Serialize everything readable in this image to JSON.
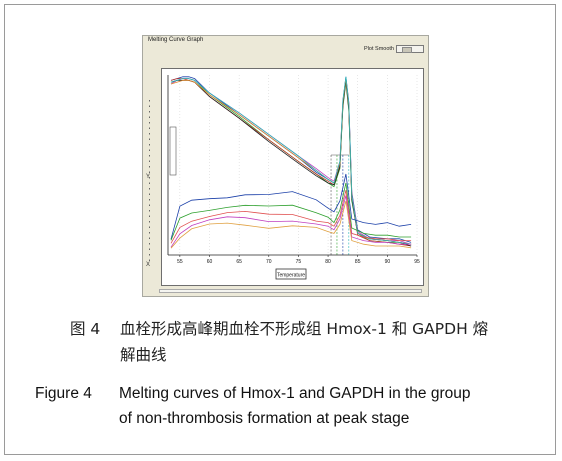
{
  "window": {
    "title": "Melting Curve Graph",
    "smooth_label": "Plot Smooth",
    "y_side_label": "Y",
    "x_side_label": "X"
  },
  "chart_data": {
    "type": "line",
    "xlabel": "Temperature",
    "ylabel": "",
    "xlim": [
      53,
      95
    ],
    "x_ticks": [
      55,
      60,
      65,
      70,
      75,
      80,
      85,
      90,
      95
    ],
    "y_tick_labels": [],
    "series": [
      {
        "color": "#1a3fa8",
        "x": [
          53.5,
          54.5,
          55.5,
          56.5,
          57.5,
          60,
          65,
          70,
          75,
          78,
          80,
          81,
          82,
          82.5,
          83,
          83.5,
          84,
          85,
          87,
          90,
          92,
          94
        ],
        "y": [
          0.97,
          0.98,
          0.99,
          0.99,
          0.98,
          0.9,
          0.78,
          0.66,
          0.54,
          0.46,
          0.42,
          0.4,
          0.5,
          0.85,
          0.99,
          0.85,
          0.35,
          0.14,
          0.1,
          0.09,
          0.09,
          0.07
        ]
      },
      {
        "color": "#2ea02e",
        "x": [
          53.5,
          54.5,
          55.5,
          56.5,
          57.5,
          60,
          65,
          70,
          75,
          78,
          80,
          81,
          82,
          82.5,
          83,
          83.5,
          84,
          85,
          87,
          90,
          92,
          94
        ],
        "y": [
          0.96,
          0.97,
          0.98,
          0.98,
          0.97,
          0.89,
          0.77,
          0.64,
          0.52,
          0.45,
          0.4,
          0.38,
          0.48,
          0.82,
          0.96,
          0.8,
          0.3,
          0.12,
          0.08,
          0.07,
          0.07,
          0.06
        ]
      },
      {
        "color": "#c0392b",
        "x": [
          53.5,
          54.5,
          55.5,
          56.5,
          57.5,
          60,
          65,
          70,
          75,
          78,
          80,
          81,
          82,
          82.5,
          83,
          83.5,
          84,
          85,
          87,
          90,
          92,
          94
        ],
        "y": [
          0.97,
          0.98,
          0.98,
          0.97,
          0.96,
          0.88,
          0.76,
          0.64,
          0.52,
          0.45,
          0.41,
          0.39,
          0.5,
          0.84,
          0.97,
          0.82,
          0.32,
          0.11,
          0.08,
          0.07,
          0.06,
          0.05
        ]
      },
      {
        "color": "#c040c0",
        "x": [
          53.5,
          54.5,
          55.5,
          56.5,
          57.5,
          60,
          65,
          70,
          75,
          78,
          80,
          81,
          82,
          82.5,
          83,
          83.5,
          84,
          85,
          87,
          90,
          92,
          94
        ],
        "y": [
          0.95,
          0.97,
          0.98,
          0.98,
          0.97,
          0.9,
          0.79,
          0.67,
          0.55,
          0.48,
          0.43,
          0.41,
          0.52,
          0.86,
          0.98,
          0.84,
          0.34,
          0.13,
          0.09,
          0.08,
          0.08,
          0.06
        ]
      },
      {
        "color": "#222222",
        "x": [
          53.5,
          54.5,
          55.5,
          56.5,
          57.5,
          60,
          65,
          70,
          75,
          78,
          80,
          81,
          82,
          82.5,
          83,
          83.5,
          84,
          85,
          87,
          90,
          92,
          94
        ],
        "y": [
          0.96,
          0.97,
          0.97,
          0.97,
          0.96,
          0.88,
          0.76,
          0.63,
          0.51,
          0.44,
          0.4,
          0.39,
          0.49,
          0.83,
          0.97,
          0.81,
          0.31,
          0.12,
          0.09,
          0.08,
          0.07,
          0.05
        ]
      },
      {
        "color": "#e08a2e",
        "x": [
          53.5,
          54.5,
          55.5,
          56.5,
          57.5,
          60,
          65,
          70,
          75,
          78,
          80,
          81,
          82,
          82.5,
          83,
          83.5,
          84,
          85,
          87,
          90,
          92,
          94
        ],
        "y": [
          0.95,
          0.96,
          0.97,
          0.97,
          0.96,
          0.89,
          0.78,
          0.66,
          0.54,
          0.47,
          0.42,
          0.4,
          0.51,
          0.85,
          0.98,
          0.83,
          0.33,
          0.12,
          0.09,
          0.08,
          0.07,
          0.06
        ]
      },
      {
        "color": "#2ab7b7",
        "x": [
          53.5,
          54.5,
          55.5,
          56.5,
          57.5,
          60,
          65,
          70,
          75,
          78,
          80,
          81,
          82,
          82.5,
          83,
          83.5,
          84,
          85,
          87,
          90,
          92,
          94
        ],
        "y": [
          0.96,
          0.97,
          0.98,
          0.98,
          0.97,
          0.9,
          0.79,
          0.67,
          0.55,
          0.47,
          0.42,
          0.4,
          0.52,
          0.86,
          0.99,
          0.84,
          0.33,
          0.12,
          0.09,
          0.08,
          0.07,
          0.06
        ]
      },
      {
        "color": "#1a3fa8",
        "x": [
          53.5,
          55,
          57,
          60,
          63,
          66,
          70,
          74,
          78,
          80,
          81,
          82,
          83,
          84,
          86,
          88,
          90,
          92,
          94
        ],
        "y": [
          0.08,
          0.26,
          0.3,
          0.32,
          0.33,
          0.34,
          0.33,
          0.34,
          0.3,
          0.26,
          0.24,
          0.3,
          0.45,
          0.2,
          0.18,
          0.17,
          0.18,
          0.16,
          0.17
        ]
      },
      {
        "color": "#2ea02e",
        "x": [
          53.5,
          55,
          57,
          60,
          63,
          66,
          70,
          74,
          78,
          80,
          81,
          82,
          83,
          84,
          86,
          88,
          90,
          92,
          94
        ],
        "y": [
          0.07,
          0.2,
          0.24,
          0.26,
          0.27,
          0.27,
          0.26,
          0.27,
          0.24,
          0.21,
          0.18,
          0.25,
          0.4,
          0.15,
          0.12,
          0.11,
          0.11,
          0.1,
          0.1
        ]
      },
      {
        "color": "#e05050",
        "x": [
          53.5,
          55,
          57,
          60,
          63,
          66,
          70,
          74,
          78,
          80,
          81,
          82,
          83,
          84,
          86,
          88,
          90,
          92,
          94
        ],
        "y": [
          0.06,
          0.16,
          0.2,
          0.22,
          0.23,
          0.23,
          0.22,
          0.23,
          0.2,
          0.18,
          0.16,
          0.22,
          0.36,
          0.12,
          0.1,
          0.09,
          0.09,
          0.08,
          0.08
        ]
      },
      {
        "color": "#c040c0",
        "x": [
          53.5,
          55,
          57,
          60,
          63,
          66,
          70,
          74,
          78,
          80,
          81,
          82,
          83,
          84,
          86,
          88,
          90,
          92,
          94
        ],
        "y": [
          0.05,
          0.13,
          0.17,
          0.19,
          0.2,
          0.2,
          0.19,
          0.2,
          0.18,
          0.16,
          0.14,
          0.2,
          0.33,
          0.1,
          0.08,
          0.07,
          0.07,
          0.06,
          0.06
        ]
      },
      {
        "color": "#e0a040",
        "x": [
          53.5,
          55,
          57,
          60,
          63,
          66,
          70,
          74,
          78,
          80,
          81,
          82,
          83,
          84,
          86,
          88,
          90,
          92,
          94
        ],
        "y": [
          0.05,
          0.1,
          0.14,
          0.16,
          0.17,
          0.17,
          0.16,
          0.17,
          0.15,
          0.13,
          0.12,
          0.17,
          0.3,
          0.08,
          0.06,
          0.05,
          0.05,
          0.05,
          0.04
        ]
      }
    ],
    "threshold_markers_x": [
      80.5,
      81.5,
      82.5,
      83.5
    ]
  },
  "caption": {
    "zh_label": "图 4",
    "zh_line1": "血栓形成高峰期血栓不形成组 Hmox-1 和 GAPDH 熔",
    "zh_line2": "解曲线",
    "en_label": "Figure 4",
    "en_line1": "Melting curves of Hmox-1 and GAPDH in the group",
    "en_line2": "of non-thrombosis formation at peak stage"
  }
}
